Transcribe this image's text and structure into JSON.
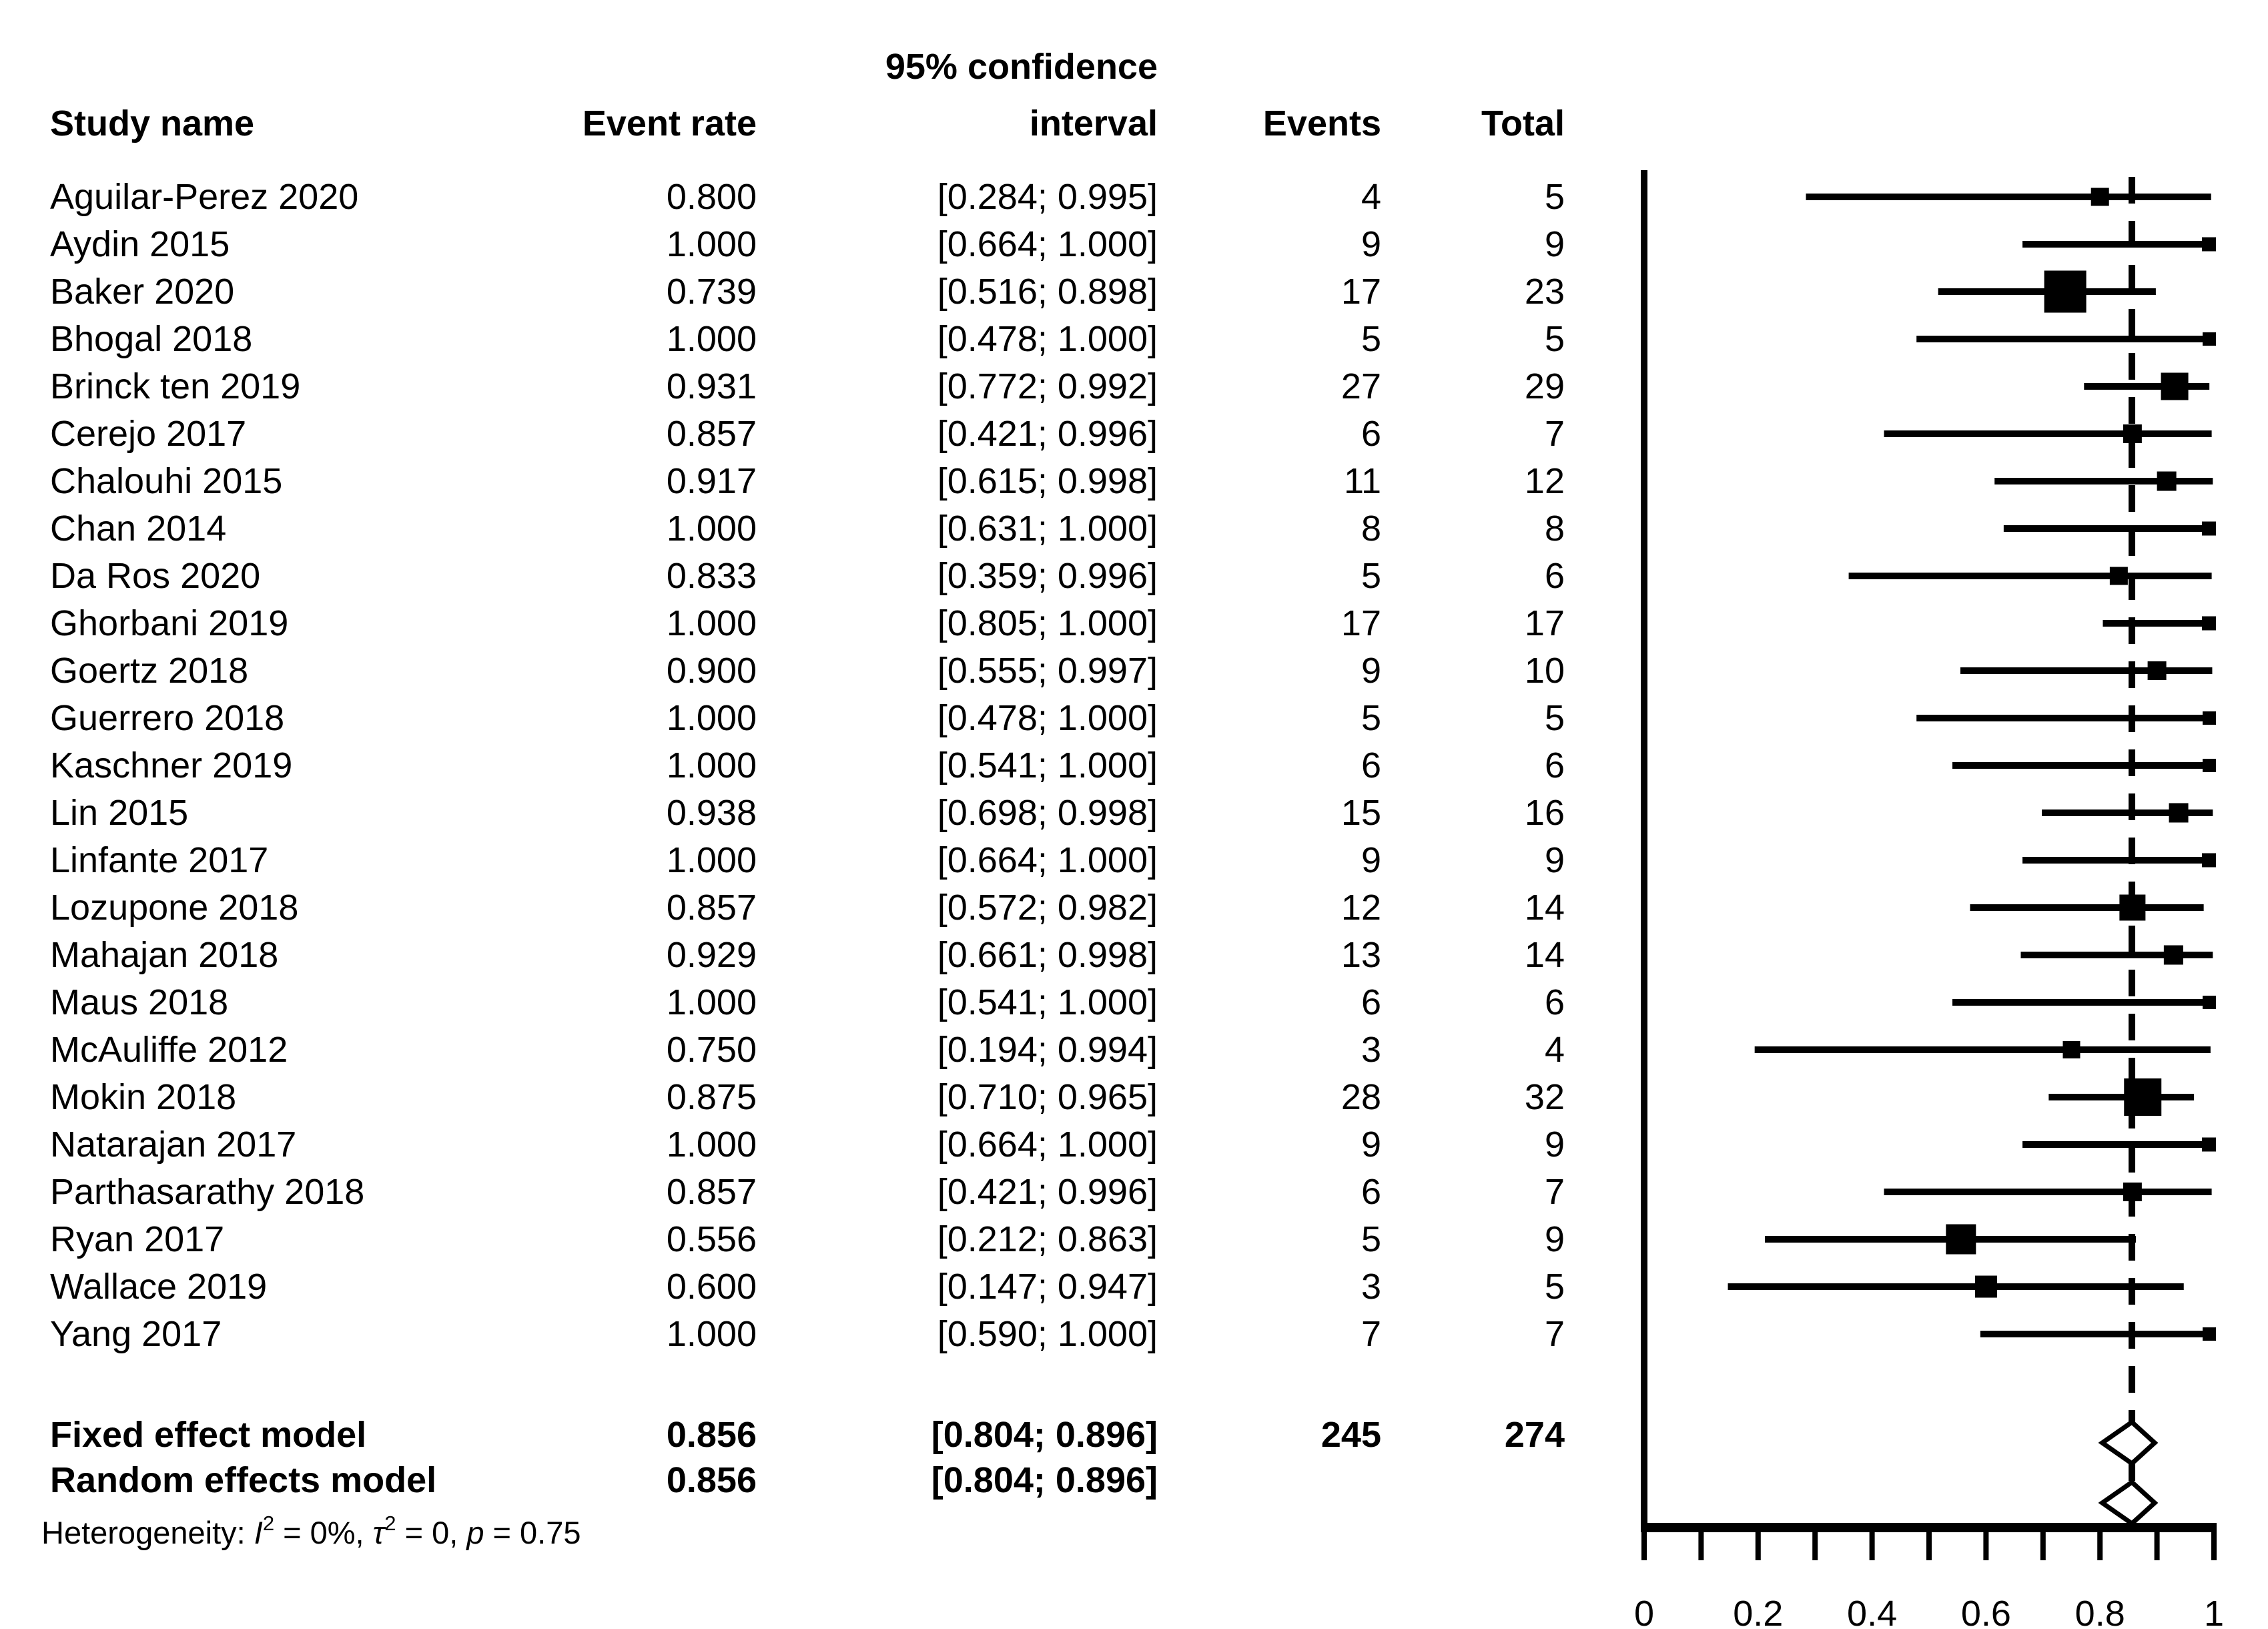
{
  "figure": {
    "background": "#ffffff",
    "ink": "#000000"
  },
  "chart_data": {
    "type": "forest",
    "title": "",
    "grid": false,
    "legend_position": "none",
    "columns": {
      "study": "Study name",
      "rate": "Event rate",
      "ci_line1": "95% confidence",
      "ci_line2": "interval",
      "events": "Events",
      "total": "Total"
    },
    "studies": [
      {
        "name": "Aguilar-Perez 2020",
        "rate": 0.8,
        "rate_label": "0.800",
        "ci_low": 0.284,
        "ci_high": 0.995,
        "ci_label": "[0.284; 0.995]",
        "events": "4",
        "total": "5",
        "marker_px": 27
      },
      {
        "name": "Aydin 2015",
        "rate": 1.0,
        "rate_label": "1.000",
        "ci_low": 0.664,
        "ci_high": 1.0,
        "ci_label": "[0.664; 1.000]",
        "events": "9",
        "total": "9",
        "marker_px": 21
      },
      {
        "name": "Baker 2020",
        "rate": 0.739,
        "rate_label": "0.739",
        "ci_low": 0.516,
        "ci_high": 0.898,
        "ci_label": "[0.516; 0.898]",
        "events": "17",
        "total": "23",
        "marker_px": 63
      },
      {
        "name": "Bhogal 2018",
        "rate": 1.0,
        "rate_label": "1.000",
        "ci_low": 0.478,
        "ci_high": 1.0,
        "ci_label": "[0.478; 1.000]",
        "events": "5",
        "total": "5",
        "marker_px": 20
      },
      {
        "name": "Brinck ten 2019",
        "rate": 0.931,
        "rate_label": "0.931",
        "ci_low": 0.772,
        "ci_high": 0.992,
        "ci_label": "[0.772; 0.992]",
        "events": "27",
        "total": "29",
        "marker_px": 41
      },
      {
        "name": "Cerejo 2017",
        "rate": 0.857,
        "rate_label": "0.857",
        "ci_low": 0.421,
        "ci_high": 0.996,
        "ci_label": "[0.421; 0.996]",
        "events": "6",
        "total": "7",
        "marker_px": 28
      },
      {
        "name": "Chalouhi 2015",
        "rate": 0.917,
        "rate_label": "0.917",
        "ci_low": 0.615,
        "ci_high": 0.998,
        "ci_label": "[0.615; 0.998]",
        "events": "11",
        "total": "12",
        "marker_px": 29
      },
      {
        "name": "Chan 2014",
        "rate": 1.0,
        "rate_label": "1.000",
        "ci_low": 0.631,
        "ci_high": 1.0,
        "ci_label": "[0.631; 1.000]",
        "events": "8",
        "total": "8",
        "marker_px": 21
      },
      {
        "name": "Da Ros 2020",
        "rate": 0.833,
        "rate_label": "0.833",
        "ci_low": 0.359,
        "ci_high": 0.996,
        "ci_label": "[0.359; 0.996]",
        "events": "5",
        "total": "6",
        "marker_px": 27
      },
      {
        "name": "Ghorbani 2019",
        "rate": 1.0,
        "rate_label": "1.000",
        "ci_low": 0.805,
        "ci_high": 1.0,
        "ci_label": "[0.805; 1.000]",
        "events": "17",
        "total": "17",
        "marker_px": 21
      },
      {
        "name": "Goertz 2018",
        "rate": 0.9,
        "rate_label": "0.900",
        "ci_low": 0.555,
        "ci_high": 0.997,
        "ci_label": "[0.555; 0.997]",
        "events": "9",
        "total": "10",
        "marker_px": 28
      },
      {
        "name": "Guerrero 2018",
        "rate": 1.0,
        "rate_label": "1.000",
        "ci_low": 0.478,
        "ci_high": 1.0,
        "ci_label": "[0.478; 1.000]",
        "events": "5",
        "total": "5",
        "marker_px": 20
      },
      {
        "name": "Kaschner 2019",
        "rate": 1.0,
        "rate_label": "1.000",
        "ci_low": 0.541,
        "ci_high": 1.0,
        "ci_label": "[0.541; 1.000]",
        "events": "6",
        "total": "6",
        "marker_px": 20
      },
      {
        "name": "Lin 2015",
        "rate": 0.938,
        "rate_label": "0.938",
        "ci_low": 0.698,
        "ci_high": 0.998,
        "ci_label": "[0.698; 0.998]",
        "events": "15",
        "total": "16",
        "marker_px": 29
      },
      {
        "name": "Linfante 2017",
        "rate": 1.0,
        "rate_label": "1.000",
        "ci_low": 0.664,
        "ci_high": 1.0,
        "ci_label": "[0.664; 1.000]",
        "events": "9",
        "total": "9",
        "marker_px": 21
      },
      {
        "name": "Lozupone 2018",
        "rate": 0.857,
        "rate_label": "0.857",
        "ci_low": 0.572,
        "ci_high": 0.982,
        "ci_label": "[0.572; 0.982]",
        "events": "12",
        "total": "14",
        "marker_px": 39
      },
      {
        "name": "Mahajan 2018",
        "rate": 0.929,
        "rate_label": "0.929",
        "ci_low": 0.661,
        "ci_high": 0.998,
        "ci_label": "[0.661; 0.998]",
        "events": "13",
        "total": "14",
        "marker_px": 29
      },
      {
        "name": "Maus 2018",
        "rate": 1.0,
        "rate_label": "1.000",
        "ci_low": 0.541,
        "ci_high": 1.0,
        "ci_label": "[0.541; 1.000]",
        "events": "6",
        "total": "6",
        "marker_px": 20
      },
      {
        "name": "McAuliffe 2012",
        "rate": 0.75,
        "rate_label": "0.750",
        "ci_low": 0.194,
        "ci_high": 0.994,
        "ci_label": "[0.194; 0.994]",
        "events": "3",
        "total": "4",
        "marker_px": 26
      },
      {
        "name": "Mokin 2018",
        "rate": 0.875,
        "rate_label": "0.875",
        "ci_low": 0.71,
        "ci_high": 0.965,
        "ci_label": "[0.710; 0.965]",
        "events": "28",
        "total": "32",
        "marker_px": 56
      },
      {
        "name": "Natarajan 2017",
        "rate": 1.0,
        "rate_label": "1.000",
        "ci_low": 0.664,
        "ci_high": 1.0,
        "ci_label": "[0.664; 1.000]",
        "events": "9",
        "total": "9",
        "marker_px": 21
      },
      {
        "name": "Parthasarathy 2018",
        "rate": 0.857,
        "rate_label": "0.857",
        "ci_low": 0.421,
        "ci_high": 0.996,
        "ci_label": "[0.421; 0.996]",
        "events": "6",
        "total": "7",
        "marker_px": 28
      },
      {
        "name": "Ryan 2017",
        "rate": 0.556,
        "rate_label": "0.556",
        "ci_low": 0.212,
        "ci_high": 0.863,
        "ci_label": "[0.212; 0.863]",
        "events": "5",
        "total": "9",
        "marker_px": 45
      },
      {
        "name": "Wallace 2019",
        "rate": 0.6,
        "rate_label": "0.600",
        "ci_low": 0.147,
        "ci_high": 0.947,
        "ci_label": "[0.147; 0.947]",
        "events": "3",
        "total": "5",
        "marker_px": 33
      },
      {
        "name": "Yang 2017",
        "rate": 1.0,
        "rate_label": "1.000",
        "ci_low": 0.59,
        "ci_high": 1.0,
        "ci_label": "[0.590; 1.000]",
        "events": "7",
        "total": "7",
        "marker_px": 20
      }
    ],
    "summaries": [
      {
        "label": "Fixed effect model",
        "rate": 0.856,
        "rate_label": "0.856",
        "ci_low": 0.804,
        "ci_high": 0.896,
        "ci_label": "[0.804; 0.896]",
        "events": "245",
        "total": "274"
      },
      {
        "label": "Random effects model",
        "rate": 0.856,
        "rate_label": "0.856",
        "ci_low": 0.804,
        "ci_high": 0.896,
        "ci_label": "[0.804; 0.896]",
        "events": "",
        "total": ""
      }
    ],
    "heterogeneity_segments": [
      {
        "t": "Heterogeneity: ",
        "s": "plain"
      },
      {
        "t": "I",
        "s": "it"
      },
      {
        "t": "2",
        "s": "sup"
      },
      {
        "t": " = 0%, ",
        "s": "plain"
      },
      {
        "t": "τ",
        "s": "it"
      },
      {
        "t": "2",
        "s": "sup"
      },
      {
        "t": " = 0, ",
        "s": "plain"
      },
      {
        "t": "p",
        "s": "it"
      },
      {
        "t": " = 0.75",
        "s": "plain"
      }
    ],
    "axis": {
      "xlim": [
        0,
        1
      ],
      "tick_step": 0.1,
      "labels": [
        {
          "value": 0,
          "text": "0"
        },
        {
          "value": 0.2,
          "text": "0.2"
        },
        {
          "value": 0.4,
          "text": "0.4"
        },
        {
          "value": 0.6,
          "text": "0.6"
        },
        {
          "value": 0.8,
          "text": "0.8"
        },
        {
          "value": 1,
          "text": "1"
        }
      ],
      "pooled_dashed_line": 0.856
    }
  }
}
